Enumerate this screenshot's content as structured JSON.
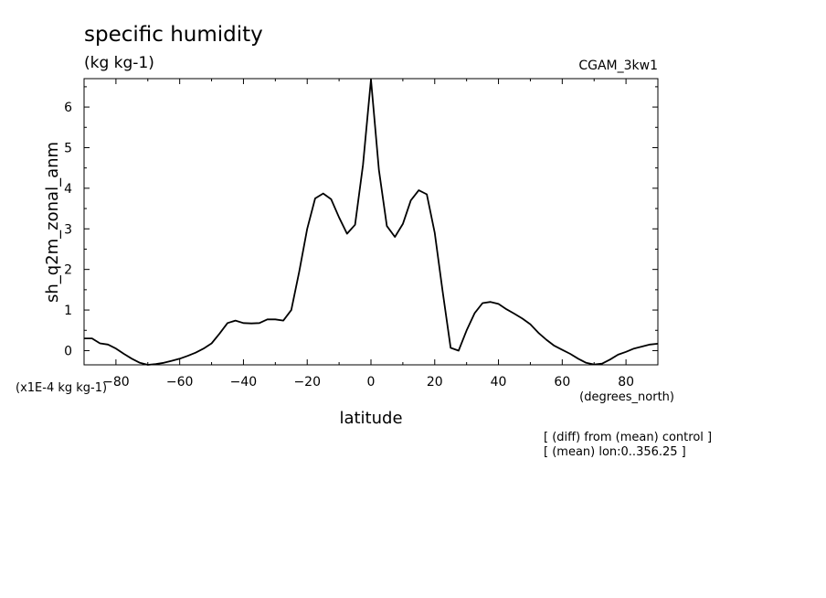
{
  "chart_data": {
    "type": "line",
    "title": "specific humidity",
    "units": "(kg kg-1)",
    "dataset": "CGAM_3kw1",
    "ylabel": "sh_q2m_zonal_anm",
    "y_scale_note": "(x1E-4 kg kg-1)",
    "xlabel": "latitude",
    "x_units": "(degrees_north)",
    "notes": [
      "[ (diff) from (mean) control ]",
      "[ (mean) lon:0..356.25 ]"
    ],
    "xlim": [
      -90,
      90
    ],
    "ylim": [
      -0.35,
      6.7
    ],
    "x_ticks": [
      -80,
      -60,
      -40,
      -20,
      0,
      20,
      40,
      60,
      80
    ],
    "y_ticks": [
      0,
      1,
      2,
      3,
      4,
      5,
      6
    ],
    "grid": false,
    "series": [
      {
        "x": [
          -90,
          -87.5,
          -85,
          -82.5,
          -80,
          -77.5,
          -75,
          -72.5,
          -70,
          -67.5,
          -65,
          -62.5,
          -60,
          -57.5,
          -55,
          -52.5,
          -50,
          -47.5,
          -45,
          -42.5,
          -40,
          -37.5,
          -35,
          -32.5,
          -30,
          -27.5,
          -25,
          -22.5,
          -20,
          -17.5,
          -15,
          -12.5,
          -10,
          -7.5,
          -5,
          -2.5,
          0,
          2.5,
          5,
          7.5,
          10,
          12.5,
          15,
          17.5,
          20,
          22.5,
          25,
          27.5,
          30,
          32.5,
          35,
          37.5,
          40,
          42.5,
          45,
          47.5,
          50,
          52.5,
          55,
          57.5,
          60,
          62.5,
          65,
          67.5,
          70,
          72.5,
          75,
          77.5,
          80,
          82.5,
          85,
          87.5,
          90
        ],
        "values": [
          0.3,
          0.3,
          0.18,
          0.15,
          0.05,
          -0.08,
          -0.2,
          -0.3,
          -0.35,
          -0.33,
          -0.3,
          -0.25,
          -0.2,
          -0.13,
          -0.05,
          0.05,
          0.18,
          0.42,
          0.68,
          0.74,
          0.68,
          0.67,
          0.68,
          0.77,
          0.77,
          0.74,
          1.0,
          1.95,
          3.0,
          3.75,
          3.87,
          3.73,
          3.28,
          2.88,
          3.1,
          4.58,
          6.68,
          4.45,
          3.07,
          2.8,
          3.12,
          3.7,
          3.95,
          3.85,
          2.9,
          1.45,
          0.07,
          0.0,
          0.5,
          0.92,
          1.17,
          1.2,
          1.15,
          1.02,
          0.91,
          0.79,
          0.65,
          0.44,
          0.27,
          0.12,
          0.02,
          -0.08,
          -0.2,
          -0.3,
          -0.34,
          -0.32,
          -0.22,
          -0.1,
          -0.03,
          0.05,
          0.1,
          0.15,
          0.17
        ]
      }
    ]
  }
}
